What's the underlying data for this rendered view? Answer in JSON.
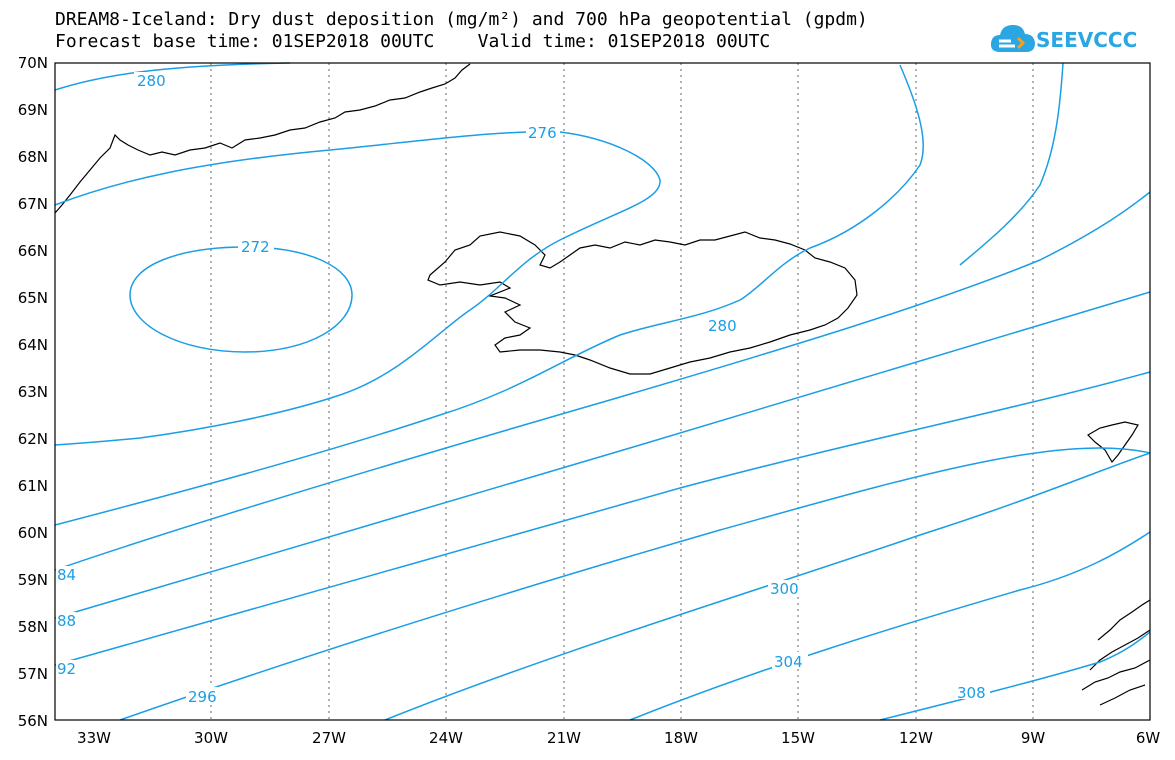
{
  "title": {
    "line1": "DREAM8-Iceland: Dry dust deposition (mg/m²) and 700 hPa geopotential (gpdm)",
    "line2": "Forecast base time: 01SEP2018 00UTC    Valid time: 01SEP2018 00UTC"
  },
  "logo": {
    "text": "SEEVCCC",
    "icon": "cloud-icon"
  },
  "axes": {
    "lat_labels": [
      "70N",
      "69N",
      "68N",
      "67N",
      "66N",
      "65N",
      "64N",
      "63N",
      "62N",
      "61N",
      "60N",
      "59N",
      "58N",
      "57N",
      "56N"
    ],
    "lon_labels": [
      "33W",
      "30W",
      "27W",
      "24W",
      "21W",
      "18W",
      "15W",
      "12W",
      "9W",
      "6W"
    ]
  },
  "colors": {
    "contour": "#1a9ee5",
    "coast": "#000000",
    "grid": "#666666"
  },
  "contours": {
    "labels": [
      "280",
      "276",
      "272",
      "280",
      "300",
      "304",
      "308",
      "296",
      "84",
      "88",
      "92"
    ]
  }
}
